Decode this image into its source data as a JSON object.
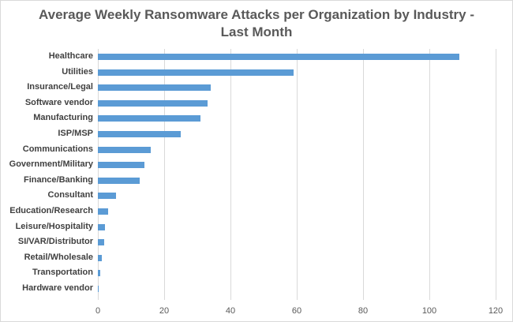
{
  "chart_data": {
    "type": "bar",
    "orientation": "horizontal",
    "title": "Average Weekly Ransomware Attacks per Organization by Industry - Last Month",
    "title_lines": [
      "Average Weekly Ransomware Attacks per Organization by Industry -",
      "Last Month"
    ],
    "categories": [
      "Healthcare",
      "Utilities",
      "Insurance/Legal",
      "Software vendor",
      "Manufacturing",
      "ISP/MSP",
      "Communications",
      "Government/Military",
      "Finance/Banking",
      "Consultant",
      "Education/Research",
      "Leisure/Hospitality",
      "SI/VAR/Distributor",
      "Retail/Wholesale",
      "Transportation",
      "Hardware vendor"
    ],
    "values": [
      109,
      59,
      34,
      33,
      31,
      25,
      16,
      14,
      12.5,
      5.5,
      3,
      2.2,
      1.8,
      1.3,
      0.8,
      0.3
    ],
    "xlabel": "",
    "ylabel": "",
    "xlim": [
      0,
      120
    ],
    "xticks": [
      "0",
      "20",
      "40",
      "60",
      "80",
      "100",
      "120"
    ],
    "grid": true,
    "legend": "none",
    "bar_color": "#5b9bd5"
  }
}
